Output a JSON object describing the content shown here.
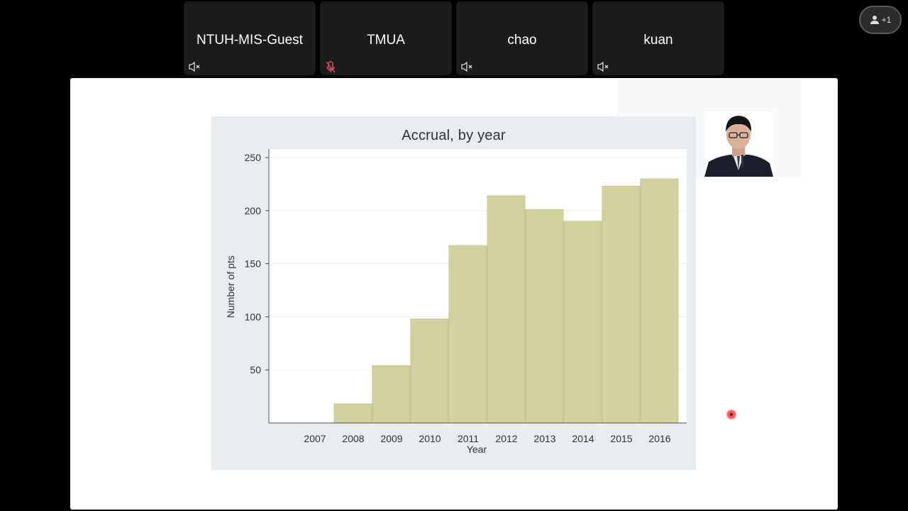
{
  "participants": [
    {
      "name": "NTUH-MIS-Guest",
      "mic": "muted"
    },
    {
      "name": "TMUA",
      "mic": "muted-red"
    },
    {
      "name": "chao",
      "mic": "muted"
    },
    {
      "name": "kuan",
      "mic": "muted"
    }
  ],
  "people_button": {
    "label": "+1",
    "icon": "person-icon"
  },
  "colors": {
    "bar": "#d4d1a0",
    "bar_stroke": "#c7c48f",
    "muted_red": "#e0505a"
  },
  "chart_data": {
    "type": "bar",
    "title": "Accrual, by year",
    "xlabel": "Year",
    "ylabel": "Number of pts",
    "categories": [
      "2007",
      "2008",
      "2009",
      "2010",
      "2011",
      "2012",
      "2013",
      "2014",
      "2015",
      "2016"
    ],
    "values": [
      0,
      18,
      54,
      98,
      167,
      214,
      201,
      190,
      223,
      230
    ],
    "yticks": [
      50,
      100,
      150,
      200,
      250
    ],
    "ylim": [
      0,
      250
    ],
    "grid": true,
    "legend": "none"
  }
}
